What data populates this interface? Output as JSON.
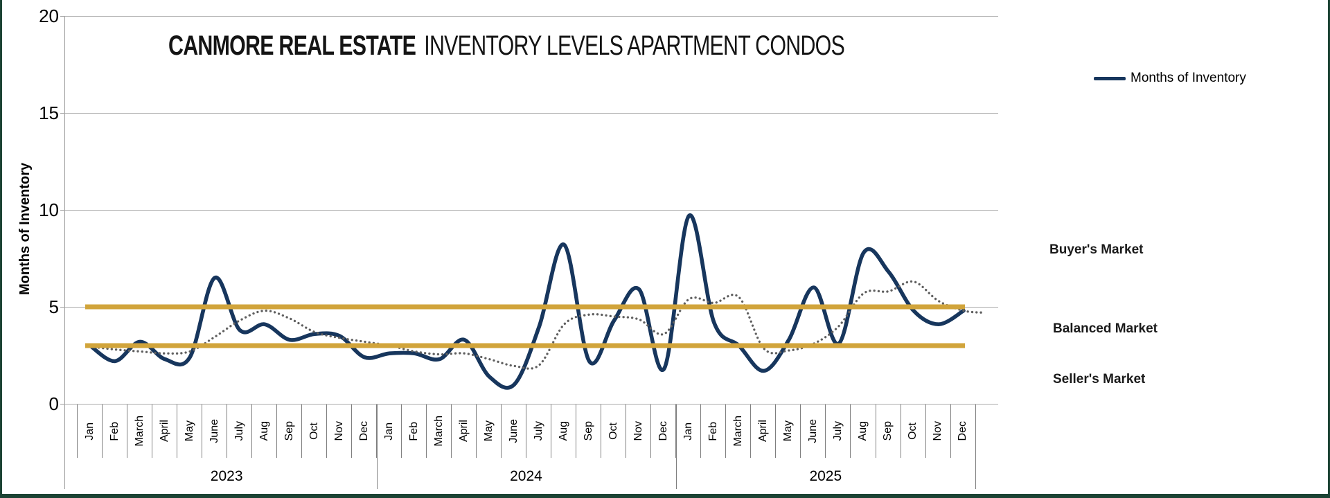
{
  "title": {
    "brand": "CANMORE REAL ESTATE",
    "rest": "INVENTORY LEVELS APARTMENT CONDOS"
  },
  "legend": {
    "items": [
      {
        "label": "Months of Inventory",
        "color": "#17365d"
      }
    ]
  },
  "y_axis": {
    "title": "Months of Inventory"
  },
  "x_axis": {
    "months": [
      "Jan",
      "Feb",
      "March",
      "April",
      "May",
      "June",
      "July",
      "Aug",
      "Sep",
      "Oct",
      "Nov",
      "Dec"
    ],
    "years": [
      "2023",
      "2024",
      "2025"
    ]
  },
  "market_labels": {
    "buyers": "Buyer's Market",
    "balanced": "Balanced Market",
    "sellers": "Seller's Market"
  },
  "colors": {
    "line": "#17365d",
    "trend_dotted": "#5f5f5f",
    "reference_gold": "#d1a43b",
    "grid": "#a9a9a9",
    "frame": "#1c4334"
  },
  "chart_data": {
    "type": "line",
    "title": "CANMORE REAL ESTATE INVENTORY LEVELS APARTMENT CONDOS",
    "xlabel": "",
    "ylabel": "Months of Inventory",
    "ylim": [
      0,
      20
    ],
    "yticks": [
      0,
      5,
      10,
      15,
      20
    ],
    "grid": true,
    "legend_position": "top-right",
    "categories": [
      "Jan 2023",
      "Feb 2023",
      "March 2023",
      "April 2023",
      "May 2023",
      "June 2023",
      "July 2023",
      "Aug 2023",
      "Sep 2023",
      "Oct 2023",
      "Nov 2023",
      "Dec 2023",
      "Jan 2024",
      "Feb 2024",
      "March 2024",
      "April 2024",
      "May 2024",
      "June 2024",
      "July 2024",
      "Aug 2024",
      "Sep 2024",
      "Oct 2024",
      "Nov 2024",
      "Dec 2024",
      "Jan 2025",
      "Feb 2025",
      "March 2025",
      "April 2025",
      "May 2025",
      "June 2025",
      "July 2025",
      "Aug 2025",
      "Sep 2025",
      "Oct 2025",
      "Nov 2025",
      "Dec 2025"
    ],
    "series": [
      {
        "name": "Months of Inventory",
        "style": "solid",
        "color": "#17365d",
        "values": [
          3.0,
          2.2,
          3.2,
          2.3,
          2.4,
          6.5,
          3.8,
          4.1,
          3.3,
          3.6,
          3.5,
          2.4,
          2.6,
          2.6,
          2.3,
          3.3,
          1.4,
          1.0,
          4.0,
          8.2,
          2.2,
          4.3,
          5.9,
          1.8,
          9.7,
          4.2,
          3.0,
          1.7,
          3.3,
          6.0,
          3.1,
          7.8,
          6.8,
          4.8,
          4.1,
          4.8
        ]
      },
      {
        "name": "Smoothed trend (dotted, unlabeled in legend)",
        "style": "dotted",
        "color": "#5f5f5f",
        "x": [
          0,
          1,
          2,
          3,
          4,
          5,
          6,
          7,
          8,
          9,
          10,
          11,
          12,
          13,
          14,
          15,
          16,
          17,
          18,
          19,
          20,
          21,
          22,
          23,
          24,
          25,
          26,
          27,
          28,
          29,
          30,
          31,
          32,
          33,
          34,
          35,
          35.8
        ],
        "values": [
          2.95,
          2.8,
          2.7,
          2.6,
          2.7,
          3.45,
          4.3,
          4.8,
          4.4,
          3.7,
          3.4,
          3.2,
          3.0,
          2.7,
          2.55,
          2.6,
          2.3,
          1.95,
          2.0,
          4.1,
          4.6,
          4.5,
          4.35,
          3.6,
          5.4,
          5.2,
          5.5,
          2.85,
          2.75,
          3.1,
          4.0,
          5.7,
          5.8,
          6.3,
          5.3,
          4.8,
          4.7
        ]
      }
    ],
    "reference_lines": [
      {
        "y": 5,
        "color": "#d1a43b",
        "meaning": "Balanced Market upper threshold"
      },
      {
        "y": 3,
        "color": "#d1a43b",
        "meaning": "Balanced Market lower threshold"
      }
    ],
    "annotations": [
      "Buyer's Market",
      "Balanced Market",
      "Seller's Market"
    ]
  }
}
